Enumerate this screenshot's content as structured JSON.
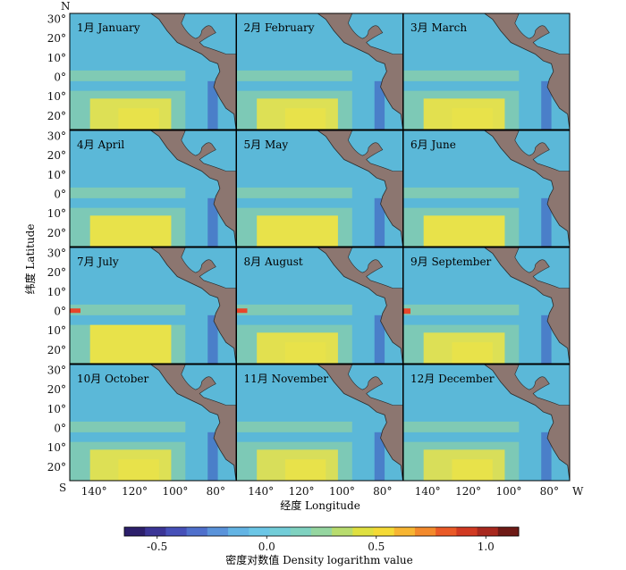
{
  "figure": {
    "ylabel": "纬度 Latitude",
    "xlabel": "经度 Longitude",
    "corner_north": "N",
    "corner_south": "S",
    "corner_west": "W"
  },
  "lat_ticks": [
    "30°",
    "20°",
    "10°",
    "0°",
    "10°",
    "20°"
  ],
  "lon_ticks": [
    "140°",
    "120°",
    "100°",
    "80°"
  ],
  "months": [
    "1月 January",
    "2月 February",
    "3月 March",
    "4月 April",
    "5月 May",
    "6月 June",
    "7月 July",
    "8月 August",
    "9月 September",
    "10月 October",
    "11月 November",
    "12月 December"
  ],
  "colorbar": {
    "label": "密度对数值 Density logarithm value",
    "ticks": [
      "-0.5",
      "0.0",
      "0.5",
      "1.0"
    ],
    "tick_values": [
      -0.5,
      0.0,
      0.5,
      1.0
    ],
    "range": [
      -0.65,
      1.15
    ],
    "colors": [
      "#2c1f6b",
      "#3b3596",
      "#4650b8",
      "#4f70cc",
      "#5a93da",
      "#63b4e4",
      "#6bc6e6",
      "#72cdd8",
      "#7fd2c0",
      "#95d6a0",
      "#b8dc6e",
      "#dfe040",
      "#f4da36",
      "#f7b532",
      "#f38a2c",
      "#ea5a27",
      "#d13a22",
      "#a8281e",
      "#6e1a16"
    ]
  },
  "colors": {
    "ocean": "#5bb8d8",
    "land": "#8c7670",
    "band_green": "#8cd0a8",
    "yellow": "#e8e24a",
    "coastal_blue": "#4a7fc9",
    "red": "#e8452a"
  }
}
